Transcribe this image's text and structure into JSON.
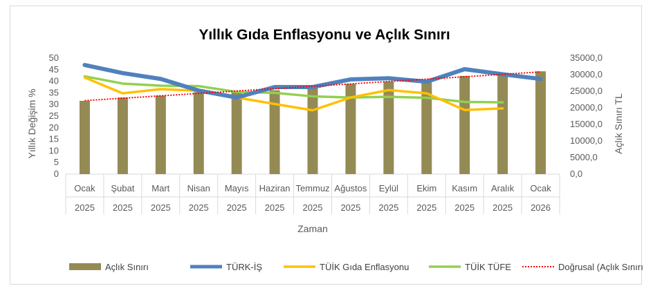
{
  "chart_data": {
    "type": "bar",
    "title": "Yıllık Gıda Enflasyonu ve Açlık Sınırı",
    "xlabel": "Zaman",
    "ylabel": "Yıllık Değişim %",
    "y2label": "Açlık Sınırı TL",
    "categories": [
      {
        "month": "Ocak",
        "year": "2025"
      },
      {
        "month": "Şubat",
        "year": "2025"
      },
      {
        "month": "Mart",
        "year": "2025"
      },
      {
        "month": "Nisan",
        "year": "2025"
      },
      {
        "month": "Mayıs",
        "year": "2025"
      },
      {
        "month": "Haziran",
        "year": "2025"
      },
      {
        "month": "Temmuz",
        "year": "2025"
      },
      {
        "month": "Ağustos",
        "year": "2025"
      },
      {
        "month": "Eylül",
        "year": "2025"
      },
      {
        "month": "Ekim",
        "year": "2025"
      },
      {
        "month": "Kasım",
        "year": "2025"
      },
      {
        "month": "Aralık",
        "year": "2025"
      },
      {
        "month": "Ocak",
        "year": "2026"
      }
    ],
    "ylim": [
      0,
      50
    ],
    "y2lim": [
      0,
      35000
    ],
    "yticks": [
      "0",
      "5",
      "10",
      "15",
      "20",
      "25",
      "30",
      "35",
      "40",
      "45",
      "50"
    ],
    "y2ticks": [
      "0,0",
      "5000,0",
      "10000,0",
      "15000,0",
      "20000,0",
      "25000,0",
      "30000,0",
      "35000,0"
    ],
    "bars": {
      "name": "Açlık Sınırı",
      "color": "#948A54",
      "axis": "right",
      "values": [
        22100,
        23100,
        23700,
        24700,
        25000,
        25300,
        26200,
        27200,
        27900,
        28300,
        29600,
        30200,
        31000
      ]
    },
    "series": [
      {
        "name": "TÜRK-İŞ",
        "color": "#4F81BD",
        "axis": "left",
        "values": [
          47,
          43.5,
          41,
          36,
          33,
          37.5,
          37.5,
          40.8,
          41.3,
          39.8,
          45.2,
          43,
          41
        ]
      },
      {
        "name": "TÜİK Gıda Enflasyonu",
        "color": "#FFC000",
        "axis": "left",
        "values": [
          41.6,
          34.8,
          36.6,
          35.9,
          33,
          30.2,
          27.5,
          33,
          36.2,
          34.8,
          27.6,
          28.3,
          null
        ]
      },
      {
        "name": "TÜİK TÜFE",
        "color": "#92D050",
        "axis": "left",
        "values": [
          42.1,
          39,
          38.1,
          37.9,
          35.4,
          35,
          33.5,
          33,
          33.3,
          32.9,
          31.1,
          30.9,
          null
        ]
      }
    ],
    "trendline": {
      "name": "Doğrusal (Açlık Sınırı)",
      "color": "#FF0000",
      "of": "Açlık Sınırı"
    },
    "legend_position": "bottom",
    "grid": false
  }
}
